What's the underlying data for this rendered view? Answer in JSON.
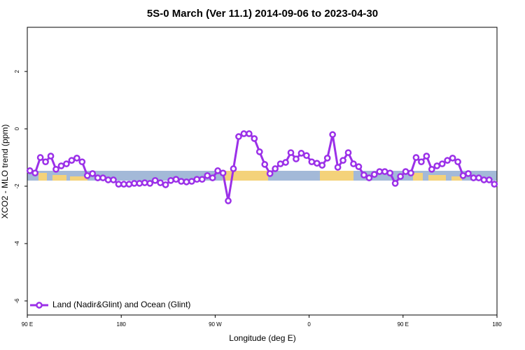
{
  "chart_data": {
    "type": "line",
    "title": "5S-0 March (Ver 11.1)   2014-09-06 to 2023-04-30",
    "xlabel": "Longitude (deg E)",
    "ylabel": "XCO2 - MLO trend (ppm)",
    "xlim": [
      90,
      540
    ],
    "ylim": [
      -6.49,
      3.54
    ],
    "xticks": [
      {
        "value": 90,
        "label": "90 E"
      },
      180,
      {
        "value": 270,
        "label": "90 W"
      },
      {
        "value": 360,
        "label": "0"
      },
      {
        "value": 450,
        "label": "90 E"
      },
      {
        "value": 540,
        "label": "180"
      }
    ],
    "yticks": [
      2,
      0,
      -2,
      -4,
      -6
    ],
    "legend": "bottom-left",
    "x": [
      92.5,
      97.5,
      102.5,
      107.5,
      112.5,
      117.5,
      122.5,
      127.5,
      132.5,
      137.5,
      142.5,
      147.5,
      152.5,
      157.5,
      162.5,
      167.5,
      172.5,
      177.5,
      182.5,
      187.5,
      192.5,
      197.5,
      202.5,
      207.5,
      212.5,
      217.5,
      222.5,
      227.5,
      232.5,
      237.5,
      242.5,
      247.5,
      252.5,
      257.5,
      262.5,
      267.5,
      272.5,
      277.5,
      282.5,
      287.5,
      292.5,
      297.5,
      302.5,
      307.5,
      312.5,
      317.5,
      322.5,
      327.5,
      332.5,
      337.5,
      342.5,
      347.5,
      352.5,
      357.5,
      362.5,
      367.5,
      372.5,
      377.5,
      382.5,
      387.5,
      392.5,
      397.5,
      402.5,
      407.5,
      412.5,
      417.5,
      422.5,
      427.5,
      432.5,
      437.5,
      442.5,
      447.5,
      452.5,
      457.5,
      462.5,
      467.5,
      472.5,
      477.5,
      482.5,
      487.5,
      492.5,
      497.5,
      502.5,
      507.5,
      512.5,
      517.5,
      522.5,
      527.5,
      532.5,
      537.5
    ],
    "series": [
      {
        "name": "Land (Nadir&Glint) and Ocean (Glint)",
        "color": "#9b30e8",
        "values": [
          -1.46,
          -1.54,
          -1.0,
          -1.15,
          -0.95,
          -1.41,
          -1.29,
          -1.22,
          -1.1,
          -1.02,
          -1.15,
          -1.63,
          -1.56,
          -1.71,
          -1.71,
          -1.78,
          -1.78,
          -1.93,
          -1.93,
          -1.93,
          -1.9,
          -1.9,
          -1.88,
          -1.9,
          -1.8,
          -1.88,
          -1.95,
          -1.8,
          -1.76,
          -1.83,
          -1.85,
          -1.83,
          -1.76,
          -1.76,
          -1.63,
          -1.71,
          -1.46,
          -1.54,
          -2.51,
          -1.39,
          -0.27,
          -0.17,
          -0.17,
          -0.34,
          -0.8,
          -1.24,
          -1.56,
          -1.39,
          -1.22,
          -1.17,
          -0.83,
          -1.05,
          -0.85,
          -0.93,
          -1.15,
          -1.2,
          -1.27,
          -1.02,
          -0.2,
          -1.34,
          -1.1,
          -0.83,
          -1.22,
          -1.32,
          -1.61,
          -1.71,
          -1.59,
          -1.49,
          -1.49,
          -1.54,
          -1.9,
          -1.66,
          -1.49,
          -1.54,
          -1.0,
          -1.15,
          -0.95,
          -1.41,
          -1.29,
          -1.22,
          -1.1,
          -1.02,
          -1.15,
          -1.63,
          -1.56,
          -1.71,
          -1.71,
          -1.78,
          -1.78,
          -1.93
        ]
      }
    ]
  }
}
